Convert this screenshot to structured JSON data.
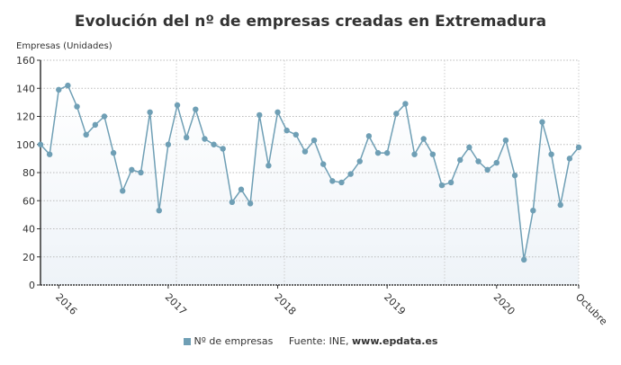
{
  "chart_data": {
    "type": "line",
    "title": "Evolución del nº de empresas creadas en Extremadura",
    "ylabel": "Empresas (Unidades)",
    "xlabel": "",
    "ylim": [
      0,
      160
    ],
    "yticks": [
      0,
      20,
      40,
      60,
      80,
      100,
      120,
      140,
      160
    ],
    "xtick_labels": [
      {
        "x": "2016-01",
        "label": "2016"
      },
      {
        "x": "2017-01",
        "label": "2017"
      },
      {
        "x": "2018-01",
        "label": "2018"
      },
      {
        "x": "2019-01",
        "label": "2019"
      },
      {
        "x": "2020-01",
        "label": "2020"
      },
      {
        "x": "2020-10",
        "label": "Octubre"
      }
    ],
    "grid": true,
    "legend_placement": "bottom",
    "colors": {
      "line": "#6f9fb5",
      "marker": "#6f9fb5",
      "fill_top": "#ffffff",
      "fill_bottom": "#eef3f8"
    },
    "x": [
      "2015-11",
      "2015-12",
      "2016-01",
      "2016-02",
      "2016-03",
      "2016-04",
      "2016-05",
      "2016-06",
      "2016-07",
      "2016-08",
      "2016-09",
      "2016-10",
      "2016-11",
      "2016-12",
      "2017-01",
      "2017-02",
      "2017-03",
      "2017-04",
      "2017-05",
      "2017-06",
      "2017-07",
      "2017-08",
      "2017-09",
      "2017-10",
      "2017-11",
      "2017-12",
      "2018-01",
      "2018-02",
      "2018-03",
      "2018-04",
      "2018-05",
      "2018-06",
      "2018-07",
      "2018-08",
      "2018-09",
      "2018-10",
      "2018-11",
      "2018-12",
      "2019-01",
      "2019-02",
      "2019-03",
      "2019-04",
      "2019-05",
      "2019-06",
      "2019-07",
      "2019-08",
      "2019-09",
      "2019-10",
      "2019-11",
      "2019-12",
      "2020-01",
      "2020-02",
      "2020-03",
      "2020-04",
      "2020-05",
      "2020-06",
      "2020-07",
      "2020-08",
      "2020-09",
      "2020-10"
    ],
    "series": [
      {
        "name": "Nº de empresas",
        "values": [
          100,
          93,
          139,
          142,
          127,
          107,
          114,
          120,
          94,
          67,
          82,
          80,
          123,
          53,
          100,
          128,
          105,
          125,
          104,
          100,
          97,
          59,
          68,
          58,
          121,
          85,
          123,
          110,
          107,
          95,
          103,
          86,
          74,
          73,
          79,
          88,
          106,
          94,
          94,
          122,
          129,
          93,
          104,
          93,
          71,
          73,
          89,
          98,
          88,
          82,
          87,
          103,
          78,
          18,
          53,
          116,
          93,
          57,
          90,
          98
        ]
      }
    ]
  },
  "legend": {
    "series_label": "Nº de empresas",
    "source_prefix": "Fuente: INE, ",
    "source_site": "www.epdata.es"
  }
}
